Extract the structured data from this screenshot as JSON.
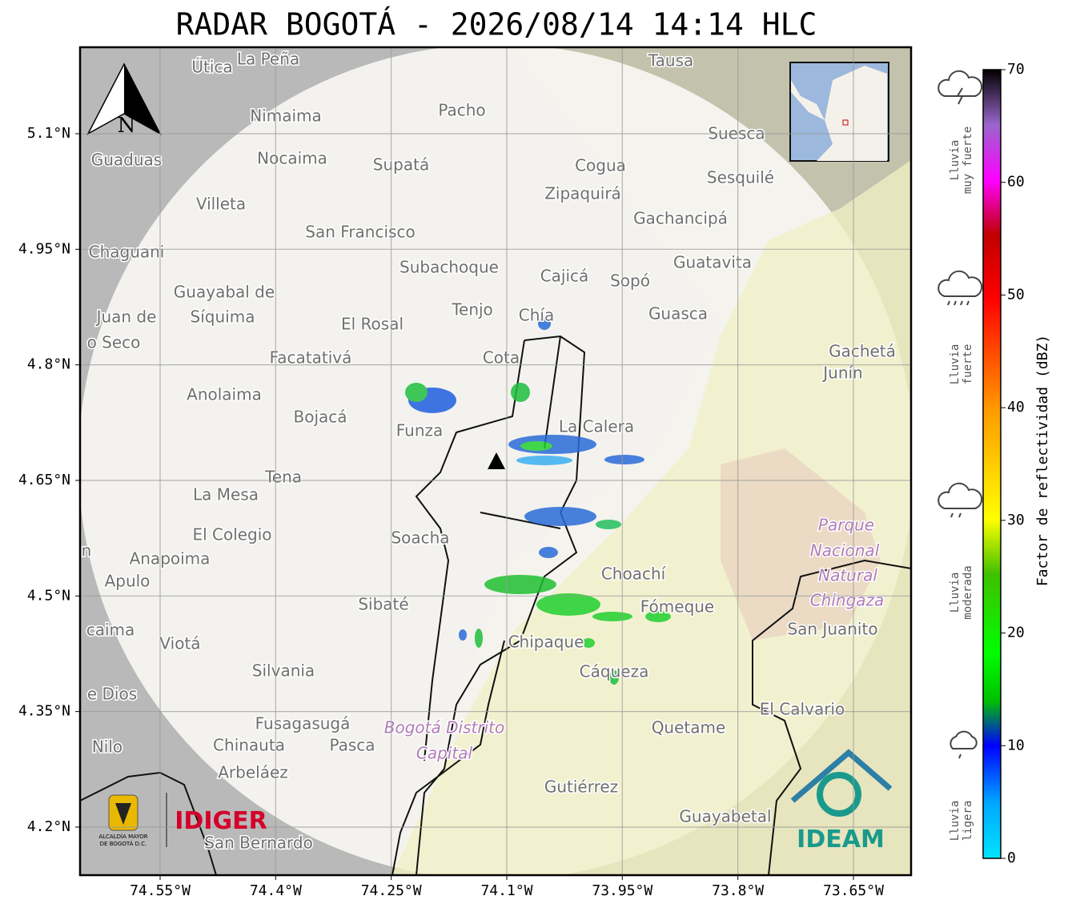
{
  "title": "RADAR BOGOTÁ - 2026/08/14 14:14 HLC",
  "lat_ticks": [
    {
      "value": 5.1,
      "label": "5.1°N"
    },
    {
      "value": 4.95,
      "label": "4.95°N"
    },
    {
      "value": 4.8,
      "label": "4.8°N"
    },
    {
      "value": 4.65,
      "label": "4.65°N"
    },
    {
      "value": 4.5,
      "label": "4.5°N"
    },
    {
      "value": 4.35,
      "label": "4.35°N"
    },
    {
      "value": 4.2,
      "label": "4.2°N"
    }
  ],
  "lon_ticks": [
    {
      "value": -74.55,
      "label": "74.55°W"
    },
    {
      "value": -74.4,
      "label": "74.4°W"
    },
    {
      "value": -74.25,
      "label": "74.25°W"
    },
    {
      "value": -74.1,
      "label": "74.1°W"
    },
    {
      "value": -73.95,
      "label": "73.95°W"
    },
    {
      "value": -73.8,
      "label": "73.8°W"
    },
    {
      "value": -73.65,
      "label": "73.65°W"
    }
  ],
  "colorbar": {
    "label": "Factor de reflectividad (dBZ)",
    "lim": [
      0,
      70
    ],
    "ticks": [
      0,
      10,
      20,
      30,
      40,
      50,
      60,
      70
    ]
  },
  "rain_levels": [
    {
      "lines": [
        "Lluvia",
        "muy fuerte"
      ]
    },
    {
      "lines": [
        "Lluvia",
        "fuerte"
      ]
    },
    {
      "lines": [
        "Lluvia",
        "moderada"
      ]
    },
    {
      "lines": [
        "Lluvia",
        "ligera"
      ]
    }
  ],
  "north_label": "N",
  "logos": {
    "alcaldia": [
      "ALCALDÍA MAYOR",
      "DE BOGOTÁ D.C."
    ],
    "idiger": "IDIGER",
    "ideam": "IDEAM"
  },
  "places": [
    "Útica",
    "La Peña",
    "Tausa",
    "Pacho",
    "Nimaima",
    "Guaduas",
    "Nocaima",
    "Supatá",
    "Cogua",
    "Suesca",
    "Sesquilé",
    "Villeta",
    "Zipaquirá",
    "Gachancipá",
    "San Francisco",
    "Chaguani",
    "Guatavita",
    "Subachoque",
    "Cajicá",
    "Sopó",
    "Guayabal de",
    "Síquima",
    "Juan de",
    "Tenjo",
    "Chía",
    "Guasca",
    "El Rosal",
    "o Seco",
    "Facatativá",
    "Cota",
    "Gachetá",
    "Junín",
    "Anolaima",
    "Bojacá",
    "Funza",
    "La Calera",
    "Tena",
    "La Mesa",
    "El Colegio",
    "Soacha",
    "Anapoima",
    "Apulo",
    "Choachí",
    "Sibaté",
    "Fómeque",
    "San Juanito",
    "caima",
    "Viotá",
    "Chipaque",
    "Silvania",
    "Cáqueza",
    "e Dios",
    "El Calvario",
    "Fusagasugá",
    "Quetame",
    "Nilo",
    "Chinauta",
    "Pasca",
    "Arbeláez",
    "Gutiérrez",
    "Guayabetal",
    "San Bernardo",
    "n"
  ],
  "parks": [
    "Parque",
    "Nacional",
    "Natural",
    "Chingaza",
    "Bogotá Distrito",
    "Capital"
  ]
}
